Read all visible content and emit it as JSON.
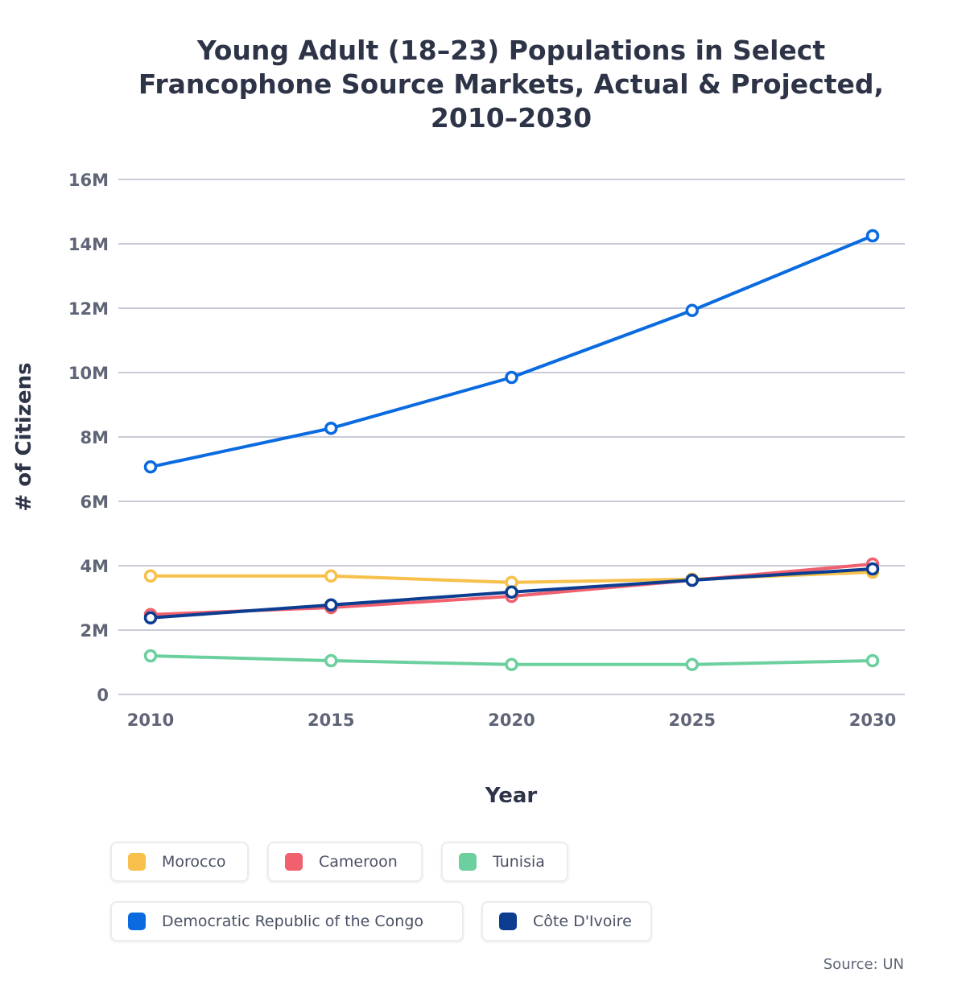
{
  "chart_data": {
    "type": "line",
    "title": "Young Adult (18–23) Populations in Select Francophone Source Markets, Actual & Projected, 2010–2030",
    "xlabel": "Year",
    "ylabel": "# of Citizens",
    "x": [
      2010,
      2015,
      2020,
      2025,
      2030
    ],
    "x_ticks": [
      "2010",
      "2015",
      "2020",
      "2025",
      "2030"
    ],
    "ylim": [
      0,
      16
    ],
    "y_ticks": [
      "0",
      "2M",
      "4M",
      "6M",
      "8M",
      "10M",
      "12M",
      "14M",
      "16M"
    ],
    "y_unit": "millions",
    "grid": true,
    "legend_position": "bottom",
    "series": [
      {
        "name": "Morocco",
        "color": "#f7c04a",
        "values": [
          3.68,
          3.68,
          3.48,
          3.58,
          3.8
        ]
      },
      {
        "name": "Cameroon",
        "color": "#f0606e",
        "values": [
          2.48,
          2.7,
          3.05,
          3.55,
          4.05
        ]
      },
      {
        "name": "Tunisia",
        "color": "#6bcf9e",
        "values": [
          1.2,
          1.05,
          0.93,
          0.93,
          1.05
        ]
      },
      {
        "name": "Democratic Republic of the Congo",
        "color": "#0a6be0",
        "values": [
          7.07,
          8.27,
          9.85,
          11.93,
          14.25
        ]
      },
      {
        "name": "Côte D'Ivoire",
        "color": "#0b3d91",
        "values": [
          2.38,
          2.78,
          3.18,
          3.55,
          3.9
        ]
      }
    ],
    "source": "Source: UN"
  }
}
